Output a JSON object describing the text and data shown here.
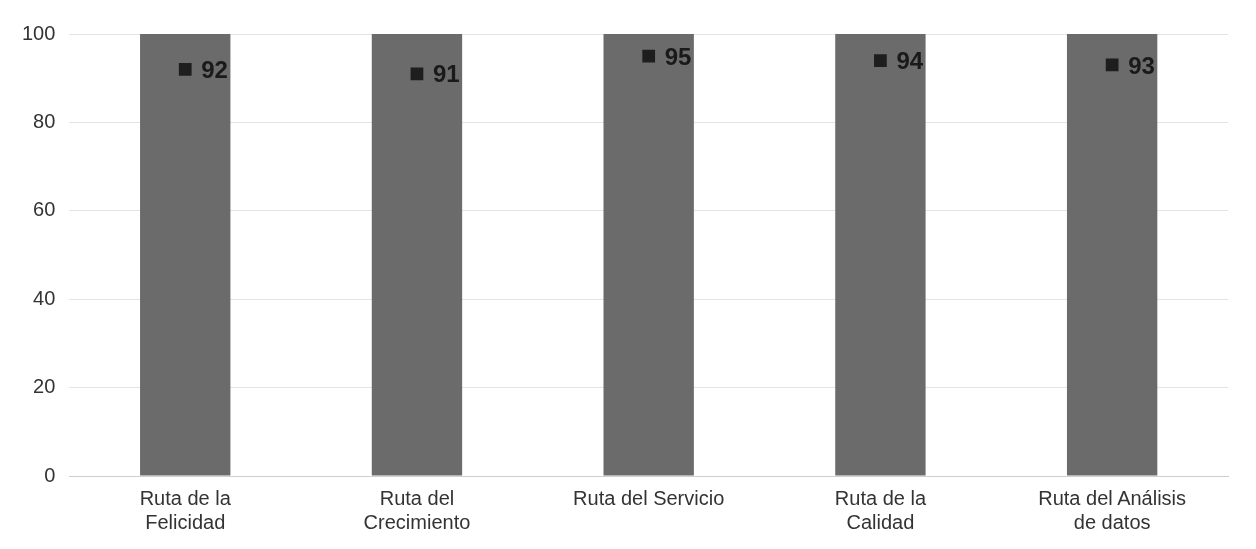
{
  "chart_data": {
    "type": "bar",
    "categories": [
      "Ruta de la Felicidad",
      "Ruta del Crecimiento",
      "Ruta del Servicio",
      "Ruta de la Calidad",
      "Ruta del Análisis de datos"
    ],
    "series": [
      {
        "color": "#6b6b6b",
        "values": [
          100,
          100,
          100,
          100,
          100
        ]
      },
      {
        "type": "scatter",
        "color": "#1e1e1e",
        "values": [
          92,
          91,
          95,
          94,
          93
        ],
        "value_labels": [
          "92",
          "91",
          "95",
          "94",
          "93"
        ]
      }
    ],
    "ylim": [
      0,
      100
    ],
    "yticks": [
      0,
      20,
      40,
      60,
      80,
      100
    ],
    "grid": "y",
    "legend": false,
    "marker": "square"
  }
}
